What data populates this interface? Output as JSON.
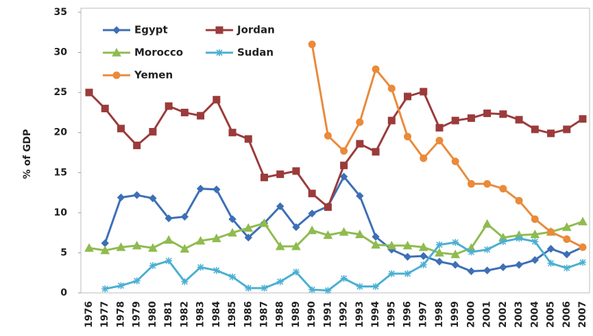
{
  "chart_data": {
    "type": "line",
    "y_label": "% of GDP",
    "categories": [
      "1976",
      "1977",
      "1978",
      "1979",
      "1980",
      "1981",
      "1982",
      "1983",
      "1984",
      "1985",
      "1986",
      "1987",
      "1988",
      "1989",
      "1990",
      "1991",
      "1992",
      "1993",
      "1994",
      "1995",
      "1996",
      "1997",
      "1998",
      "1999",
      "2000",
      "2001",
      "2002",
      "2003",
      "2004",
      "2005",
      "2006",
      "2007"
    ],
    "series": [
      {
        "name": "Egypt",
        "color": "#3d6fb6",
        "marker": "diamond",
        "values": [
          null,
          6.2,
          11.9,
          12.2,
          11.8,
          9.3,
          9.5,
          13,
          12.9,
          9.2,
          6.9,
          8.7,
          10.8,
          8.2,
          9.9,
          10.8,
          14.5,
          12.1,
          7,
          5.4,
          4.5,
          4.6,
          3.9,
          3.5,
          2.7,
          2.8,
          3.2,
          3.5,
          4.1,
          5.5,
          4.8,
          5.7
        ]
      },
      {
        "name": "Jordan",
        "color": "#9b3b3b",
        "marker": "square",
        "values": [
          25,
          23,
          20.5,
          18.4,
          20.1,
          23.3,
          22.5,
          22.1,
          24.1,
          20,
          19.2,
          14.4,
          14.8,
          15.2,
          12.4,
          10.7,
          15.9,
          18.6,
          17.6,
          21.5,
          24.5,
          25.1,
          20.6,
          21.5,
          21.8,
          22.4,
          22.3,
          21.6,
          20.4,
          19.9,
          20.4,
          21.7
        ]
      },
      {
        "name": "Morocco",
        "color": "#8fbb4f",
        "marker": "triangle",
        "values": [
          5.6,
          5.3,
          5.7,
          5.9,
          5.6,
          6.6,
          5.5,
          6.5,
          6.8,
          7.5,
          8.1,
          8.7,
          5.8,
          5.8,
          7.8,
          7.2,
          7.6,
          7.3,
          6,
          5.9,
          5.9,
          5.7,
          5,
          4.8,
          5.6,
          8.6,
          6.9,
          7.2,
          7.3,
          7.6,
          8.2,
          8.9
        ]
      },
      {
        "name": "Sudan",
        "color": "#4bafd2",
        "marker": "asterisk",
        "values": [
          null,
          0.5,
          0.9,
          1.5,
          3.4,
          4,
          1.4,
          3.2,
          2.8,
          2,
          0.6,
          0.6,
          1.4,
          2.6,
          0.4,
          0.3,
          1.8,
          0.8,
          0.8,
          2.4,
          2.4,
          3.5,
          6,
          6.3,
          5.1,
          5.4,
          6.4,
          6.8,
          6.4,
          3.7,
          3.1,
          3.8
        ]
      },
      {
        "name": "Yemen",
        "color": "#ea8a3a",
        "marker": "circle",
        "values": [
          null,
          null,
          null,
          null,
          null,
          null,
          null,
          null,
          null,
          null,
          null,
          null,
          null,
          null,
          31,
          19.6,
          17.7,
          21.3,
          27.9,
          25.5,
          19.5,
          16.8,
          19,
          16.4,
          13.6,
          13.6,
          13,
          11.5,
          9.2,
          7.6,
          6.7,
          5.7
        ]
      }
    ],
    "ylim": [
      0,
      35
    ],
    "yticks": [
      0,
      5,
      10,
      15,
      20,
      25,
      30,
      35
    ],
    "grid": false
  }
}
